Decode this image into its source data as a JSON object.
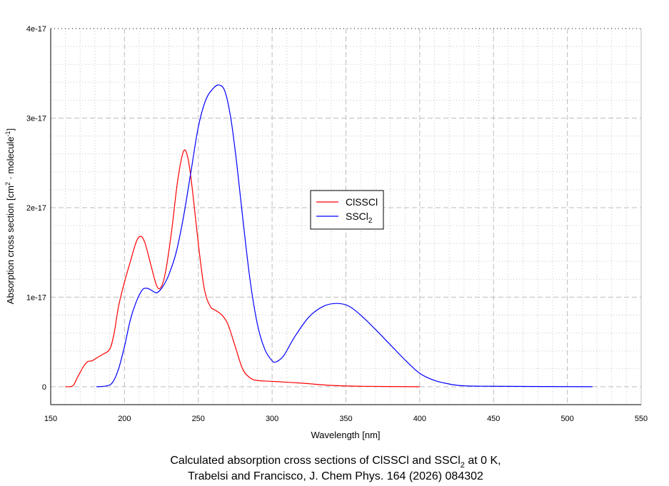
{
  "chart_data": {
    "type": "line",
    "title_line1_prefix": "Calculated absorption cross sections of ClSSCl and SSCl",
    "title_line1_sub": "2",
    "title_line1_suffix": " at 0 K,",
    "title_line2": "Trabelsi and Francisco, J. Chem Phys. 164 (2026) 084302",
    "xlabel": "Wavelength [nm]",
    "ylabel_prefix": "Absorption cross section [cm",
    "ylabel_sup1": "2",
    "ylabel_mid": " · molecule",
    "ylabel_sup2": "-1",
    "ylabel_suffix": "]",
    "xlim": [
      150,
      550
    ],
    "ylim": [
      -2e-18,
      4e-17
    ],
    "xticks": [
      150,
      200,
      250,
      300,
      350,
      400,
      450,
      500,
      550
    ],
    "xtick_labels": [
      "150",
      "200",
      "250",
      "300",
      "350",
      "400",
      "450",
      "500",
      "550"
    ],
    "yticks": [
      0,
      1e-17,
      2e-17,
      3e-17,
      4e-17
    ],
    "ytick_labels": [
      "0",
      "1e-17",
      "2e-17",
      "3e-17",
      "4e-17"
    ],
    "grid": true,
    "legend_placement": "center",
    "y_unit": 1e-17,
    "series": [
      {
        "name": "ClSSCl",
        "name_sub": "",
        "color": "#ff0000",
        "x": [
          160,
          165,
          168,
          172,
          175,
          178,
          182,
          185,
          190,
          193,
          196,
          200,
          204,
          208,
          211,
          214,
          218,
          222,
          225,
          228,
          232,
          236,
          240,
          243,
          246,
          250,
          254,
          258,
          262,
          266,
          270,
          275,
          280,
          285,
          290,
          300,
          320,
          340,
          360,
          400
        ],
        "y": [
          0,
          0.01,
          0.1,
          0.22,
          0.28,
          0.29,
          0.33,
          0.36,
          0.42,
          0.6,
          0.9,
          1.17,
          1.4,
          1.62,
          1.68,
          1.6,
          1.35,
          1.12,
          1.12,
          1.3,
          1.75,
          2.3,
          2.63,
          2.55,
          2.2,
          1.6,
          1.1,
          0.9,
          0.85,
          0.8,
          0.7,
          0.45,
          0.2,
          0.1,
          0.07,
          0.06,
          0.04,
          0.015,
          0.005,
          0
        ]
      },
      {
        "name": "SSCl",
        "name_sub": "2",
        "color": "#0000ff",
        "x": [
          181,
          188,
          192,
          196,
          200,
          204,
          208,
          212,
          215,
          218,
          222,
          226,
          230,
          235,
          240,
          245,
          250,
          255,
          260,
          264,
          268,
          272,
          276,
          280,
          285,
          290,
          295,
          300,
          303,
          308,
          315,
          325,
          335,
          344,
          352,
          360,
          370,
          380,
          390,
          400,
          410,
          420,
          430,
          450,
          517
        ],
        "y": [
          0,
          0.01,
          0.05,
          0.2,
          0.45,
          0.75,
          0.95,
          1.08,
          1.1,
          1.08,
          1.05,
          1.12,
          1.25,
          1.5,
          1.9,
          2.4,
          2.9,
          3.2,
          3.33,
          3.37,
          3.3,
          3.0,
          2.5,
          1.9,
          1.2,
          0.7,
          0.42,
          0.29,
          0.28,
          0.35,
          0.55,
          0.78,
          0.9,
          0.93,
          0.9,
          0.8,
          0.64,
          0.47,
          0.3,
          0.15,
          0.07,
          0.03,
          0.01,
          0.005,
          0
        ]
      }
    ]
  }
}
